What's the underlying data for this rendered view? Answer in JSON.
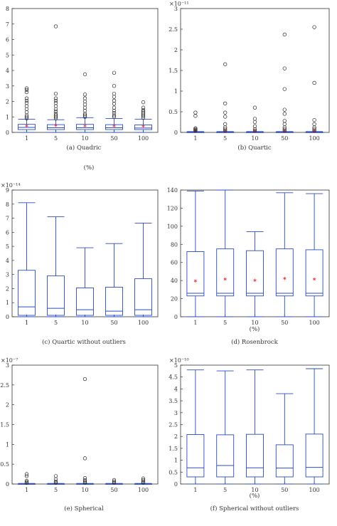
{
  "chart_data": [
    {
      "type": "box",
      "caption": "(a) Quadric",
      "xlabel": "(%)",
      "ylabel": "",
      "exponent": "",
      "ylim": [
        0,
        8
      ],
      "yticks": [
        "0",
        "1",
        "2",
        "3",
        "4",
        "5",
        "6",
        "7",
        "8"
      ],
      "categories": [
        "1",
        "5",
        "10",
        "50",
        "100"
      ],
      "boxes": [
        {
          "min": 0.0,
          "q1": 0.18,
          "median": 0.32,
          "q3": 0.52,
          "max": 0.85,
          "mean": 0.34,
          "outliers": [
            0.9,
            1.0,
            1.1,
            1.3,
            1.5,
            1.7,
            1.9,
            2.05,
            2.2,
            2.6,
            2.75,
            2.85
          ]
        },
        {
          "min": 0.0,
          "q1": 0.18,
          "median": 0.3,
          "q3": 0.5,
          "max": 0.82,
          "mean": 0.36,
          "outliers": [
            0.9,
            1.0,
            1.1,
            1.2,
            1.35,
            1.5,
            1.7,
            1.9,
            2.05,
            2.2,
            2.5,
            6.85
          ]
        },
        {
          "min": 0.0,
          "q1": 0.18,
          "median": 0.3,
          "q3": 0.52,
          "max": 0.95,
          "mean": 0.35,
          "outliers": [
            1.0,
            1.1,
            1.2,
            1.4,
            1.6,
            1.8,
            2.0,
            2.2,
            2.45,
            3.75
          ]
        },
        {
          "min": 0.0,
          "q1": 0.18,
          "median": 0.3,
          "q3": 0.5,
          "max": 0.9,
          "mean": 0.35,
          "outliers": [
            1.0,
            1.1,
            1.25,
            1.4,
            1.6,
            1.85,
            2.05,
            2.3,
            2.5,
            3.0,
            3.85
          ]
        },
        {
          "min": 0.0,
          "q1": 0.18,
          "median": 0.28,
          "q3": 0.48,
          "max": 0.85,
          "mean": 0.33,
          "outliers": [
            0.95,
            1.05,
            1.15,
            1.25,
            1.35,
            1.45,
            1.6,
            1.95
          ]
        }
      ]
    },
    {
      "type": "box",
      "caption": "(b) Quartic",
      "xlabel": "(%)",
      "ylabel": "",
      "exponent": "×10⁻¹¹",
      "ylim": [
        0,
        3
      ],
      "yticks": [
        "0",
        "0.5",
        "1",
        "1.5",
        "2",
        "2.5",
        "3"
      ],
      "categories": [
        "1",
        "5",
        "10",
        "50",
        "100"
      ],
      "boxes": [
        {
          "min": 0.0,
          "q1": 0.0,
          "median": 0.003,
          "q3": 0.008,
          "max": 0.02,
          "mean": 0.005,
          "outliers": [
            0.04,
            0.06,
            0.08,
            0.1,
            0.4,
            0.48
          ]
        },
        {
          "min": 0.0,
          "q1": 0.0,
          "median": 0.003,
          "q3": 0.008,
          "max": 0.02,
          "mean": 0.005,
          "outliers": [
            0.04,
            0.08,
            0.12,
            0.2,
            0.38,
            0.48,
            0.7,
            1.65
          ]
        },
        {
          "min": 0.0,
          "q1": 0.0,
          "median": 0.003,
          "q3": 0.008,
          "max": 0.02,
          "mean": 0.005,
          "outliers": [
            0.04,
            0.08,
            0.15,
            0.25,
            0.33,
            0.6
          ]
        },
        {
          "min": 0.0,
          "q1": 0.0,
          "median": 0.003,
          "q3": 0.008,
          "max": 0.02,
          "mean": 0.005,
          "outliers": [
            0.04,
            0.08,
            0.12,
            0.2,
            0.28,
            0.45,
            0.55,
            1.05,
            1.55,
            2.37
          ]
        },
        {
          "min": 0.0,
          "q1": 0.0,
          "median": 0.003,
          "q3": 0.008,
          "max": 0.02,
          "mean": 0.005,
          "outliers": [
            0.04,
            0.08,
            0.12,
            0.2,
            0.3,
            1.2,
            2.55
          ]
        }
      ]
    },
    {
      "type": "box",
      "caption": "(c) Quartic without outliers",
      "xlabel": "",
      "ylabel": "",
      "exponent": "×10⁻¹⁴",
      "ylim": [
        0,
        9
      ],
      "yticks": [
        "0",
        "1",
        "2",
        "3",
        "4",
        "5",
        "6",
        "7",
        "8",
        "9"
      ],
      "categories": [
        "1",
        "5",
        "10",
        "50",
        "100"
      ],
      "boxes": [
        {
          "min": 0.0,
          "q1": 0.1,
          "median": 0.7,
          "q3": 3.3,
          "max": 8.1,
          "mean": null,
          "outliers": []
        },
        {
          "min": 0.0,
          "q1": 0.1,
          "median": 0.6,
          "q3": 2.9,
          "max": 7.1,
          "mean": null,
          "outliers": []
        },
        {
          "min": 0.0,
          "q1": 0.1,
          "median": 0.5,
          "q3": 2.05,
          "max": 4.9,
          "mean": null,
          "outliers": []
        },
        {
          "min": 0.0,
          "q1": 0.1,
          "median": 0.4,
          "q3": 2.1,
          "max": 5.2,
          "mean": null,
          "outliers": []
        },
        {
          "min": 0.0,
          "q1": 0.1,
          "median": 0.5,
          "q3": 2.7,
          "max": 6.65,
          "mean": null,
          "outliers": []
        }
      ]
    },
    {
      "type": "box",
      "caption": "(d) Rosenbrock",
      "xlabel": "(%)",
      "ylabel": "",
      "exponent": "",
      "ylim": [
        0,
        140
      ],
      "yticks": [
        "0",
        "20",
        "40",
        "60",
        "80",
        "100",
        "120",
        "140"
      ],
      "categories": [
        "1",
        "5",
        "10",
        "50",
        "100"
      ],
      "boxes": [
        {
          "min": 0,
          "q1": 23,
          "median": 26,
          "q3": 72,
          "max": 139,
          "mean": 38,
          "outliers": []
        },
        {
          "min": 0,
          "q1": 23,
          "median": 26,
          "q3": 75,
          "max": 140,
          "mean": 40,
          "outliers": []
        },
        {
          "min": 0,
          "q1": 23,
          "median": 26,
          "q3": 73,
          "max": 94,
          "mean": 39,
          "outliers": []
        },
        {
          "min": 0,
          "q1": 23,
          "median": 26,
          "q3": 75,
          "max": 137,
          "mean": 41,
          "outliers": []
        },
        {
          "min": 0,
          "q1": 23,
          "median": 26,
          "q3": 74,
          "max": 136,
          "mean": 40,
          "outliers": []
        }
      ]
    },
    {
      "type": "box",
      "caption": "(e) Spherical",
      "xlabel": "",
      "ylabel": "",
      "exponent": "×10⁻⁷",
      "ylim": [
        0,
        3
      ],
      "yticks": [
        "0",
        "0.5",
        "1",
        "1.5",
        "2",
        "2.5",
        "3"
      ],
      "categories": [
        "1",
        "5",
        "10",
        "50",
        "100"
      ],
      "boxes": [
        {
          "min": 0.0,
          "q1": 0.0,
          "median": 0.002,
          "q3": 0.006,
          "max": 0.015,
          "mean": null,
          "outliers": [
            0.03,
            0.05,
            0.08,
            0.2,
            0.25
          ]
        },
        {
          "min": 0.0,
          "q1": 0.0,
          "median": 0.002,
          "q3": 0.006,
          "max": 0.015,
          "mean": null,
          "outliers": [
            0.03,
            0.06,
            0.12,
            0.2
          ]
        },
        {
          "min": 0.0,
          "q1": 0.0,
          "median": 0.002,
          "q3": 0.006,
          "max": 0.015,
          "mean": null,
          "outliers": [
            0.03,
            0.06,
            0.1,
            0.15,
            0.65,
            2.65
          ]
        },
        {
          "min": 0.0,
          "q1": 0.0,
          "median": 0.002,
          "q3": 0.006,
          "max": 0.015,
          "mean": null,
          "outliers": [
            0.03,
            0.06,
            0.1
          ]
        },
        {
          "min": 0.0,
          "q1": 0.0,
          "median": 0.002,
          "q3": 0.006,
          "max": 0.015,
          "mean": null,
          "outliers": [
            0.03,
            0.06,
            0.1,
            0.14
          ]
        }
      ]
    },
    {
      "type": "box",
      "caption": "(f) Spherical without outliers",
      "xlabel": "(%)",
      "ylabel": "",
      "exponent": "×10⁻¹⁰",
      "ylim": [
        0,
        5
      ],
      "yticks": [
        "0",
        "0.5",
        "1",
        "1.5",
        "2",
        "2.5",
        "3",
        "3.5",
        "4",
        "4.5",
        "5"
      ],
      "categories": [
        "1",
        "5",
        "10",
        "50",
        "100"
      ],
      "boxes": [
        {
          "min": 0.0,
          "q1": 0.3,
          "median": 0.68,
          "q3": 2.08,
          "max": 4.8,
          "mean": null,
          "outliers": []
        },
        {
          "min": 0.0,
          "q1": 0.3,
          "median": 0.78,
          "q3": 2.07,
          "max": 4.76,
          "mean": null,
          "outliers": []
        },
        {
          "min": 0.0,
          "q1": 0.3,
          "median": 0.68,
          "q3": 2.09,
          "max": 4.8,
          "mean": null,
          "outliers": []
        },
        {
          "min": 0.0,
          "q1": 0.3,
          "median": 0.67,
          "q3": 1.65,
          "max": 3.8,
          "mean": null,
          "outliers": []
        },
        {
          "min": 0.0,
          "q1": 0.3,
          "median": 0.7,
          "q3": 2.1,
          "max": 4.85,
          "mean": null,
          "outliers": []
        }
      ]
    }
  ],
  "colors": {
    "box": "#2b4bbd",
    "median": "#c8102e",
    "mean": "#e8101e",
    "axis": "#333333",
    "text": "#333333"
  }
}
